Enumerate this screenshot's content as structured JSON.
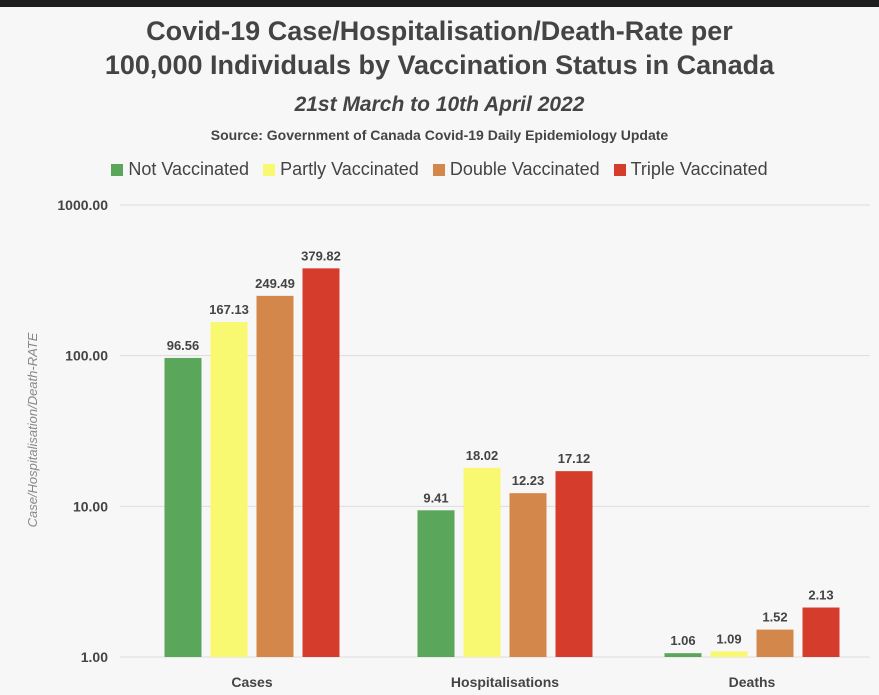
{
  "chart_data": {
    "type": "bar",
    "title": "Covid-19 Case/Hospitalisation/Death-Rate per 100,000 Individuals by Vaccination Status in Canada",
    "title_lines": [
      "Covid-19 Case/Hospitalisation/Death-Rate per",
      "100,000 Individuals by Vaccination Status in Canada"
    ],
    "subtitle": "21st March to 10th April 2022",
    "source": "Source: Government of Canada Covid-19 Daily Epidemiology Update",
    "ylabel": "Case/Hospitalisation/Death-RATE",
    "xlabel": "",
    "yscale": "log",
    "ylim": [
      1,
      1000
    ],
    "yticks": [
      "1.00",
      "10.00",
      "100.00",
      "1000.00"
    ],
    "categories": [
      "Cases",
      "Hospitalisations",
      "Deaths"
    ],
    "legend_position": "top",
    "series": [
      {
        "name": "Not Vaccinated",
        "color": "#5aa65a",
        "values": [
          96.56,
          9.41,
          1.06
        ],
        "labels": [
          "96.56",
          "9.41",
          "1.06"
        ]
      },
      {
        "name": "Partly Vaccinated",
        "color": "#f9f871",
        "values": [
          167.13,
          18.02,
          1.09
        ],
        "labels": [
          "167.13",
          "18.02",
          "1.09"
        ]
      },
      {
        "name": "Double Vaccinated",
        "color": "#d4874a",
        "values": [
          249.49,
          12.23,
          1.52
        ],
        "labels": [
          "249.49",
          "12.23",
          "1.52"
        ]
      },
      {
        "name": "Triple Vaccinated",
        "color": "#d63c2c",
        "values": [
          379.82,
          17.12,
          2.13
        ],
        "labels": [
          "379.82",
          "17.12",
          "2.13"
        ]
      }
    ]
  }
}
